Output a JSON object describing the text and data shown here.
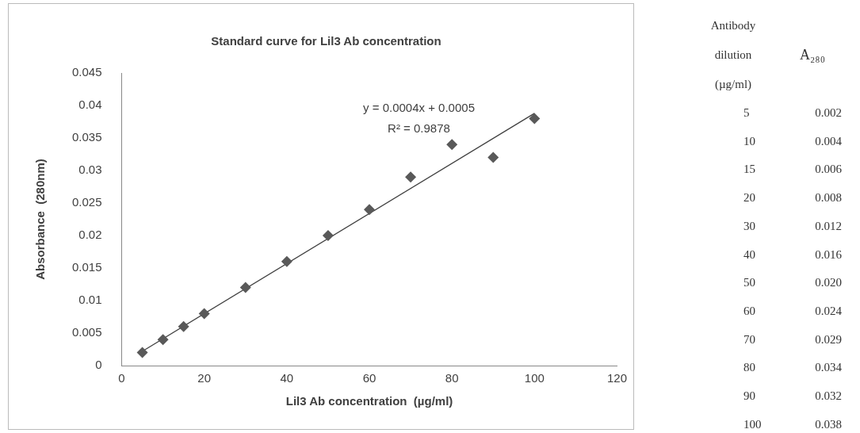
{
  "chart_data": [
    {
      "type": "scatter",
      "title": "Standard curve for Lil3 Ab concentration",
      "xlabel": "Lil3 Ab concentration  (µg/ml)",
      "ylabel": "Absorbance  (280nm)",
      "x": [
        5,
        10,
        15,
        20,
        30,
        40,
        50,
        60,
        70,
        80,
        90,
        100
      ],
      "series": [
        {
          "type": "scatter",
          "color": "#595959",
          "marker": "diamond",
          "values": [
            0.002,
            0.004,
            0.006,
            0.008,
            0.012,
            0.016,
            0.02,
            0.024,
            0.029,
            0.034,
            0.032,
            0.038
          ]
        },
        {
          "type": "line",
          "color": "#404040",
          "line_style": "solid",
          "marker": "none",
          "x": [
            5,
            100
          ],
          "values": [
            0.0022,
            0.0388
          ]
        }
      ],
      "xlim": [
        0,
        120
      ],
      "xticks": [
        0,
        20,
        40,
        60,
        80,
        100,
        120
      ],
      "ylim": [
        0,
        0.045
      ],
      "yticks": [
        0,
        0.005,
        0.01,
        0.015,
        0.02,
        0.025,
        0.03,
        0.035,
        0.04,
        0.045
      ],
      "grid": false,
      "legend": false,
      "annotations": [
        "y = 0.0004x + 0.0005",
        "R² = 0.9878"
      ]
    },
    {
      "type": "other",
      "annotations": [
        "Antibody dilution (µg/ml)",
        "A₂₈₀",
        "5 0.002",
        "10 0.004",
        "15 0.006",
        "20 0.008",
        "30 0.012",
        "40 0.016",
        "50 0.020",
        "60 0.024",
        "70 0.029",
        "80 0.034",
        "90 0.032",
        "100 0.038"
      ]
    }
  ]
}
